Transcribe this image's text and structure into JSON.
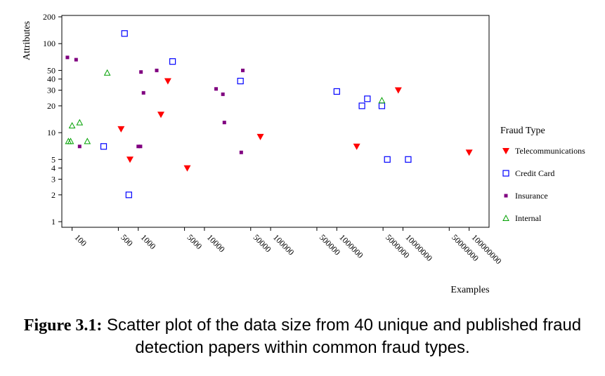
{
  "chart_data": {
    "type": "scatter",
    "xlabel": "Examples",
    "ylabel": "Attributes",
    "x_scale": "log",
    "y_scale": "log",
    "xlim": [
      70,
      200000000
    ],
    "ylim": [
      1,
      200
    ],
    "x_ticks": [
      "100",
      "500",
      "1000",
      "5000",
      "10000",
      "50000",
      "100000",
      "500000",
      "1000000",
      "5000000",
      "10000000",
      "50000000",
      "100000000"
    ],
    "y_ticks": [
      "1",
      "2",
      "3",
      "4",
      "5",
      "10",
      "20",
      "30",
      "40",
      "50",
      "100",
      "200"
    ],
    "legend_title": "Fraud Type",
    "legend_position": "right",
    "series": [
      {
        "name": "Telecommunications",
        "marker": "filled-triangle-down",
        "color": "#ff0000",
        "points": [
          {
            "x": 550,
            "y": 11
          },
          {
            "x": 750,
            "y": 5
          },
          {
            "x": 2200,
            "y": 16
          },
          {
            "x": 2800,
            "y": 38
          },
          {
            "x": 5500,
            "y": 4
          },
          {
            "x": 70000,
            "y": 9
          },
          {
            "x": 2000000,
            "y": 7
          },
          {
            "x": 8500000,
            "y": 30
          },
          {
            "x": 100000000,
            "y": 6
          }
        ]
      },
      {
        "name": "Credit Card",
        "marker": "open-square",
        "color": "#0000ff",
        "points": [
          {
            "x": 300,
            "y": 7
          },
          {
            "x": 620,
            "y": 130
          },
          {
            "x": 720,
            "y": 2
          },
          {
            "x": 3300,
            "y": 63
          },
          {
            "x": 35000,
            "y": 38
          },
          {
            "x": 1000000,
            "y": 29
          },
          {
            "x": 2400000,
            "y": 20
          },
          {
            "x": 2900000,
            "y": 24
          },
          {
            "x": 4800000,
            "y": 20
          },
          {
            "x": 5800000,
            "y": 5
          },
          {
            "x": 12000000,
            "y": 5
          }
        ]
      },
      {
        "name": "Insurance",
        "marker": "filled-small-square",
        "color": "#800080",
        "points": [
          {
            "x": 85,
            "y": 70
          },
          {
            "x": 115,
            "y": 66
          },
          {
            "x": 130,
            "y": 7
          },
          {
            "x": 1000,
            "y": 7
          },
          {
            "x": 1080,
            "y": 7
          },
          {
            "x": 1100,
            "y": 48
          },
          {
            "x": 1200,
            "y": 28
          },
          {
            "x": 1900,
            "y": 50
          },
          {
            "x": 15000,
            "y": 31
          },
          {
            "x": 19000,
            "y": 27
          },
          {
            "x": 20000,
            "y": 13
          },
          {
            "x": 36000,
            "y": 6
          },
          {
            "x": 38000,
            "y": 50
          }
        ]
      },
      {
        "name": "Internal",
        "marker": "open-triangle-up",
        "color": "#00a000",
        "points": [
          {
            "x": 88,
            "y": 8
          },
          {
            "x": 95,
            "y": 8
          },
          {
            "x": 100,
            "y": 12
          },
          {
            "x": 130,
            "y": 13
          },
          {
            "x": 170,
            "y": 8
          },
          {
            "x": 340,
            "y": 47
          },
          {
            "x": 4800000,
            "y": 23
          }
        ]
      }
    ]
  },
  "caption": {
    "label": "Figure 3.1:",
    "text": " Scatter plot of the data size from 40 unique and published fraud detection papers within common fraud types."
  }
}
